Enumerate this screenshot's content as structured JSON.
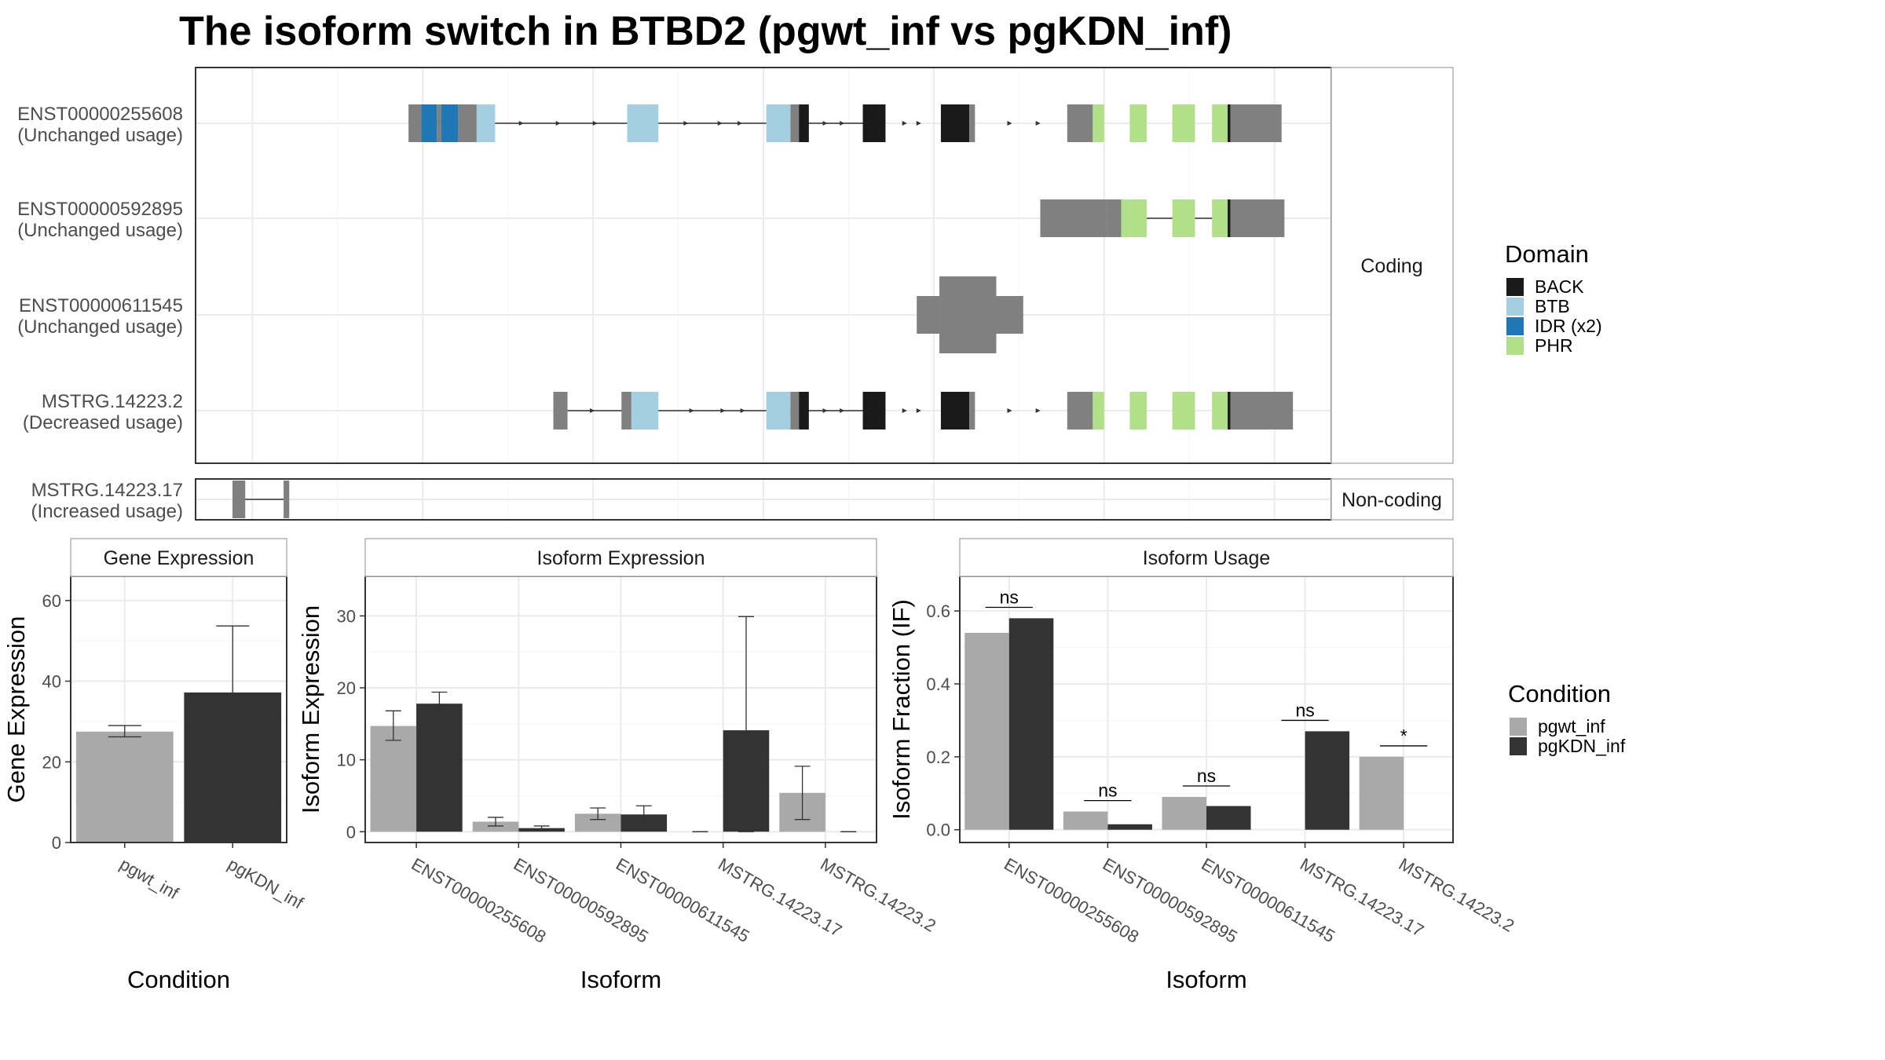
{
  "title": "The isoform switch in BTBD2 (pgwt_inf vs pgKDN_inf)",
  "colors": {
    "BACK": "#1a1a1a",
    "BTB": "#a6cee3",
    "IDR (x2)": "#1f78b4",
    "PHR": "#b2df8a",
    "utr": "#808080",
    "pgwt_inf": "#a9a9a9",
    "pgKDN_inf": "#333333"
  },
  "structure": {
    "facets": [
      "Coding",
      "Non-coding"
    ],
    "coding_transcripts": [
      {
        "id": "ENST00000255608",
        "usage": "(Unchanged usage)",
        "intron": [
          7.5,
          23.5
        ],
        "blocks": [
          {
            "x0": 7.5,
            "x1": 7.95,
            "t": "u"
          },
          {
            "x0": 7.95,
            "x1": 8.5,
            "t": "IDR (x2)"
          },
          {
            "x0": 8.5,
            "x1": 8.65,
            "t": "u"
          },
          {
            "x0": 8.65,
            "x1": 9.25,
            "t": "IDR (x2)"
          },
          {
            "x0": 9.25,
            "x1": 9.9,
            "t": "u"
          },
          {
            "x0": 9.9,
            "x1": 10.55,
            "t": "BTB"
          },
          {
            "x0": 15.2,
            "x1": 16.3,
            "t": "BTB"
          },
          {
            "x0": 20.1,
            "x1": 20.95,
            "t": "BTB"
          },
          {
            "x0": 20.95,
            "x1": 21.25,
            "t": "u"
          },
          {
            "x0": 21.25,
            "x1": 21.6,
            "t": "BACK"
          },
          {
            "x0": 23.5,
            "x1": 24.3,
            "t": "BACK"
          },
          {
            "x0": 26.25,
            "x1": 27.25,
            "t": "BACK"
          },
          {
            "x0": 27.25,
            "x1": 27.45,
            "t": "u"
          },
          {
            "x0": 30.7,
            "x1": 31.6,
            "t": "u"
          },
          {
            "x0": 31.6,
            "x1": 32.0,
            "t": "PHR"
          },
          {
            "x0": 32.9,
            "x1": 33.5,
            "t": "PHR"
          },
          {
            "x0": 34.4,
            "x1": 35.2,
            "t": "PHR"
          },
          {
            "x0": 35.8,
            "x1": 36.35,
            "t": "PHR"
          },
          {
            "x0": 36.35,
            "x1": 36.45,
            "t": "BACK"
          },
          {
            "x0": 36.45,
            "x1": 38.25,
            "t": "u",
            "h": "utr"
          }
        ],
        "arrows": [
          11.5,
          12.8,
          14.1,
          17.3,
          18.5,
          19.2,
          22.2,
          22.8,
          25.0,
          25.5,
          28.7,
          29.7
        ]
      },
      {
        "id": "ENST00000592895",
        "usage": "(Unchanged usage)",
        "intron": [
          31.8,
          36.4
        ],
        "blocks": [
          {
            "x0": 29.75,
            "x1": 32.1,
            "t": "u",
            "h": "utr"
          },
          {
            "x0": 32.1,
            "x1": 32.6,
            "t": "u"
          },
          {
            "x0": 32.6,
            "x1": 32.9,
            "t": "PHR"
          },
          {
            "x0": 32.9,
            "x1": 33.5,
            "t": "PHR"
          },
          {
            "x0": 34.4,
            "x1": 35.2,
            "t": "PHR"
          },
          {
            "x0": 35.8,
            "x1": 36.35,
            "t": "PHR"
          },
          {
            "x0": 36.35,
            "x1": 36.45,
            "t": "BACK"
          },
          {
            "x0": 36.45,
            "x1": 38.35,
            "t": "u",
            "h": "utr"
          }
        ],
        "arrows": []
      },
      {
        "id": "ENST00000611545",
        "usage": "(Unchanged usage)",
        "intron": null,
        "blocks": [
          {
            "x0": 25.4,
            "x1": 26.2,
            "t": "u",
            "h": "utr"
          },
          {
            "x0": 26.2,
            "x1": 28.2,
            "t": "u"
          },
          {
            "x0": 28.2,
            "x1": 29.15,
            "t": "u",
            "h": "utr"
          }
        ],
        "arrows": []
      },
      {
        "id": "MSTRG.14223.2",
        "usage": "(Decreased usage)",
        "intron": [
          12.6,
          23.5
        ],
        "blocks": [
          {
            "x0": 12.6,
            "x1": 13.1,
            "t": "u"
          },
          {
            "x0": 15.0,
            "x1": 15.35,
            "t": "u"
          },
          {
            "x0": 15.35,
            "x1": 16.3,
            "t": "BTB"
          },
          {
            "x0": 20.1,
            "x1": 20.95,
            "t": "BTB"
          },
          {
            "x0": 20.95,
            "x1": 21.25,
            "t": "u"
          },
          {
            "x0": 21.25,
            "x1": 21.6,
            "t": "BACK"
          },
          {
            "x0": 23.5,
            "x1": 24.3,
            "t": "BACK"
          },
          {
            "x0": 26.25,
            "x1": 27.25,
            "t": "BACK"
          },
          {
            "x0": 27.25,
            "x1": 27.45,
            "t": "u"
          },
          {
            "x0": 30.7,
            "x1": 31.6,
            "t": "u"
          },
          {
            "x0": 31.6,
            "x1": 32.0,
            "t": "PHR"
          },
          {
            "x0": 32.9,
            "x1": 33.5,
            "t": "PHR"
          },
          {
            "x0": 34.4,
            "x1": 35.2,
            "t": "PHR"
          },
          {
            "x0": 35.8,
            "x1": 36.35,
            "t": "PHR"
          },
          {
            "x0": 36.35,
            "x1": 36.45,
            "t": "BACK"
          },
          {
            "x0": 36.45,
            "x1": 38.65,
            "t": "u",
            "h": "utr"
          }
        ],
        "arrows": [
          14.0,
          15.3,
          17.5,
          18.6,
          19.3,
          22.2,
          22.8,
          25.0,
          25.5,
          28.7,
          29.7
        ]
      }
    ],
    "noncoding_transcripts": [
      {
        "id": "MSTRG.14223.17",
        "usage": "(Increased usage)",
        "intron": [
          1.35,
          3.15
        ],
        "blocks": [
          {
            "x0": 1.3,
            "x1": 1.75,
            "t": "u"
          },
          {
            "x0": 3.1,
            "x1": 3.3,
            "t": "u"
          }
        ],
        "arrows": []
      }
    ]
  },
  "domain_legend": {
    "title": "Domain",
    "items": [
      {
        "label": "BACK",
        "color": "#1a1a1a"
      },
      {
        "label": "BTB",
        "color": "#a6cee3"
      },
      {
        "label": "IDR (x2)",
        "color": "#1f78b4"
      },
      {
        "label": "PHR",
        "color": "#b2df8a"
      }
    ]
  },
  "condition_legend": {
    "title": "Condition",
    "items": [
      {
        "label": "pgwt_inf",
        "color": "#a9a9a9"
      },
      {
        "label": "pgKDN_inf",
        "color": "#333333"
      }
    ]
  },
  "chart_data": [
    {
      "type": "bar",
      "title": "Gene Expression",
      "xlabel": "Condition",
      "ylabel": "Gene Expression",
      "categories": [
        "pgwt_inf",
        "pgKDN_inf"
      ],
      "values": [
        27.5,
        37.2
      ],
      "err_low": [
        26.2,
        21.0
      ],
      "err_high": [
        29.0,
        53.7
      ],
      "ylim": [
        0,
        66
      ],
      "yticks": [
        0,
        20,
        40,
        60
      ],
      "grid": true
    },
    {
      "type": "bar",
      "title": "Isoform Expression",
      "xlabel": "Isoform",
      "ylabel": "Isoform Expression",
      "categories": [
        "ENST00000255608",
        "ENST00000592895",
        "ENST00000611545",
        "MSTRG.14223.17",
        "MSTRG.14223.2"
      ],
      "series": [
        {
          "name": "pgwt_inf",
          "values": [
            14.7,
            1.4,
            2.5,
            0.0,
            5.4
          ],
          "err_low": [
            12.7,
            0.8,
            1.7,
            0.0,
            1.7
          ],
          "err_high": [
            16.8,
            2.0,
            3.3,
            0.0,
            9.1
          ]
        },
        {
          "name": "pgKDN_inf",
          "values": [
            17.8,
            0.5,
            2.4,
            14.1,
            0.0
          ],
          "err_low": [
            16.2,
            0.2,
            1.4,
            0.0,
            0.0
          ],
          "err_high": [
            19.4,
            0.8,
            3.6,
            29.9,
            0.0
          ]
        }
      ],
      "ylim": [
        -1.5,
        35.5
      ],
      "yticks": [
        0,
        10,
        20,
        30
      ],
      "grid": true
    },
    {
      "type": "bar",
      "title": "Isoform Usage",
      "xlabel": "Isoform",
      "ylabel": "Isoform Fraction (IF)",
      "categories": [
        "ENST00000255608",
        "ENST00000592895",
        "ENST00000611545",
        "MSTRG.14223.17",
        "MSTRG.14223.2"
      ],
      "series": [
        {
          "name": "pgwt_inf",
          "values": [
            0.54,
            0.05,
            0.09,
            0.0,
            0.2
          ]
        },
        {
          "name": "pgKDN_inf",
          "values": [
            0.58,
            0.015,
            0.065,
            0.27,
            0.0
          ]
        }
      ],
      "significance": [
        {
          "label": "ns",
          "y": 0.61
        },
        {
          "label": "ns",
          "y": 0.08
        },
        {
          "label": "ns",
          "y": 0.12
        },
        {
          "label": "ns",
          "y": 0.3
        },
        {
          "label": "*",
          "y": 0.23
        }
      ],
      "ylim": [
        -0.035,
        0.695
      ],
      "yticks": [
        0.0,
        0.2,
        0.4,
        0.6
      ],
      "grid": true
    }
  ]
}
